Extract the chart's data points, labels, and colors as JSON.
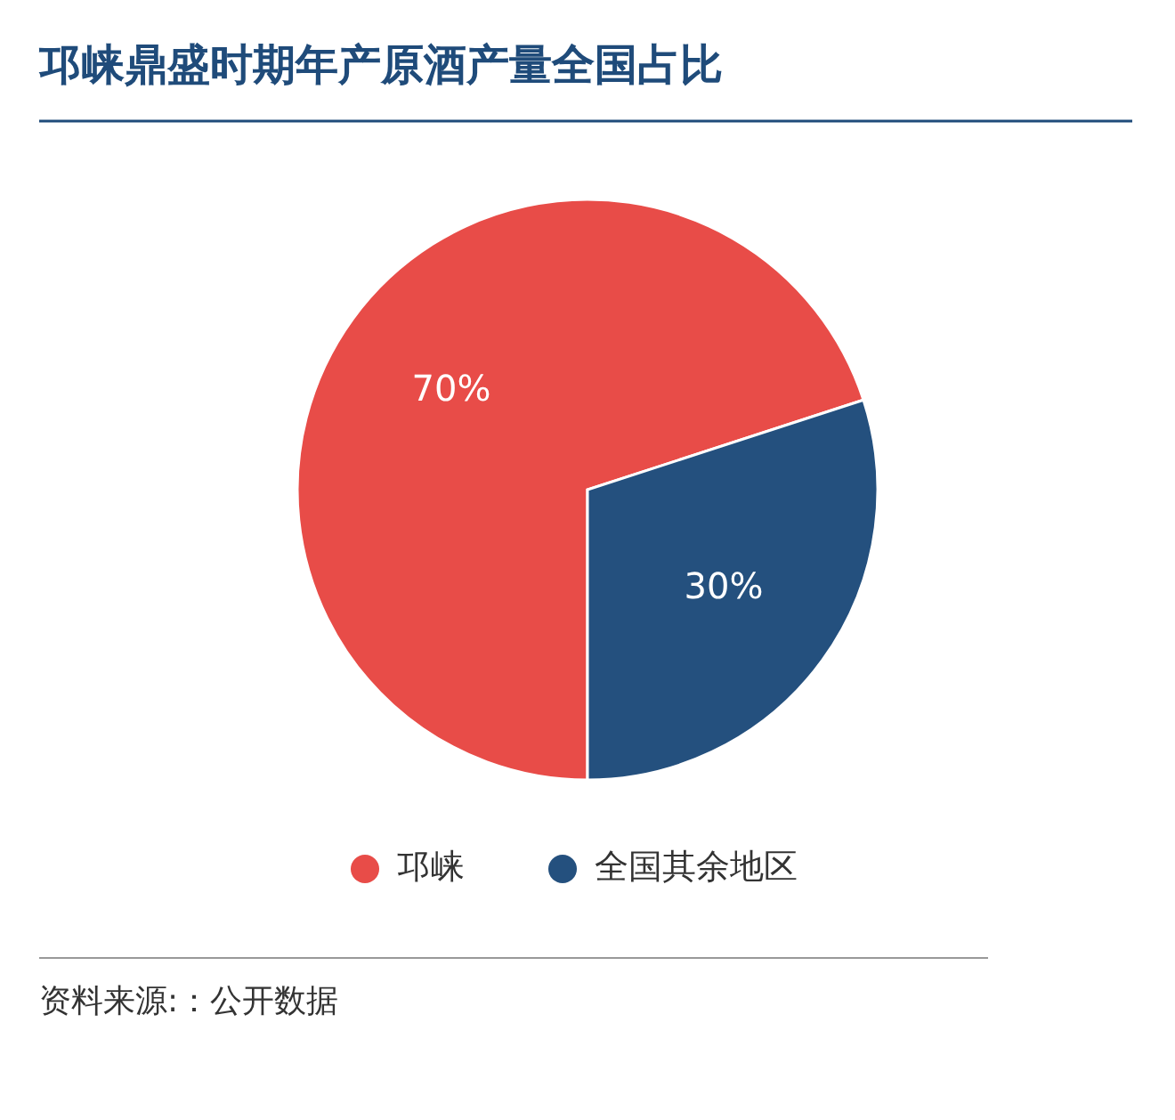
{
  "chart_data": {
    "type": "pie",
    "title": "邛崃鼎盛时期年产原酒产量全国占比",
    "categories": [
      "邛崃",
      "全国其余地区"
    ],
    "values": [
      70,
      30
    ],
    "colors": [
      "#e84c48",
      "#24507e"
    ],
    "value_labels": [
      "70%",
      "30%"
    ],
    "legend": "bottom",
    "annotations": [
      "资料来源:：公开数据"
    ]
  }
}
